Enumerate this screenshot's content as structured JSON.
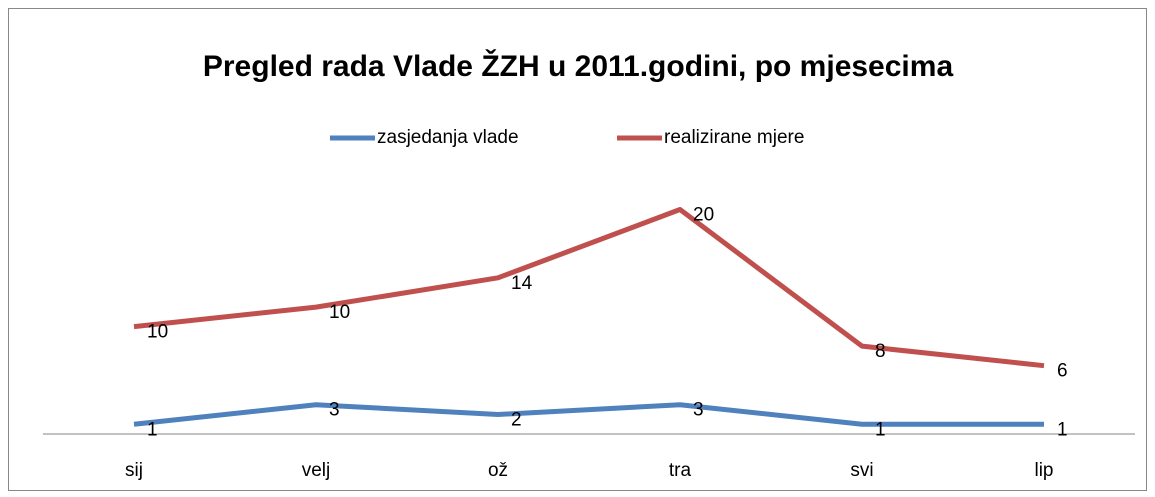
{
  "chart_data": {
    "type": "line",
    "stacked": true,
    "title": "Pregled rada Vlade ŽZH u 2011.godini, po mjesecima",
    "categories": [
      "sij",
      "velj",
      "ož",
      "tra",
      "svi",
      "lip"
    ],
    "series": [
      {
        "name": "zasjedanja  vlade",
        "color": "#4f81bd",
        "values": [
          1,
          3,
          2,
          3,
          1,
          1
        ]
      },
      {
        "name": "realizirane mjere",
        "color": "#c0504d",
        "values": [
          10,
          10,
          14,
          20,
          8,
          6
        ]
      }
    ],
    "ylim": [
      0,
      25
    ],
    "legend": "top"
  }
}
